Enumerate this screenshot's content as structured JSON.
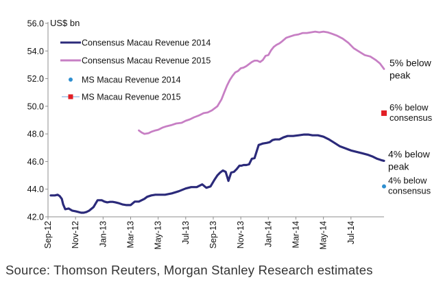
{
  "chart_data": {
    "type": "line",
    "ylabel": "US$ bn",
    "ylim": [
      42.0,
      56.0
    ],
    "yticks": [
      "42.0",
      "44.0",
      "46.0",
      "48.0",
      "50.0",
      "52.0",
      "54.0",
      "56.0"
    ],
    "ytick_values": [
      42,
      44,
      46,
      48,
      50,
      52,
      54,
      56
    ],
    "xlim": [
      0,
      24.5
    ],
    "xticks": [
      "Sep-12",
      "Nov-12",
      "Jan-13",
      "Mar-13",
      "May-13",
      "Jul-13",
      "Sep-13",
      "Nov-13",
      "Jan-14",
      "Mar-14",
      "May-14",
      "Jul-14"
    ],
    "xtick_values": [
      0,
      2,
      4,
      6,
      8,
      10,
      12,
      14,
      16,
      18,
      20,
      22
    ],
    "series": [
      {
        "name": "Consensus Macau Revenue 2014",
        "color": "#2b2a7a",
        "style": "line",
        "x": [
          0.2,
          0.5,
          0.7,
          0.85,
          1.0,
          1.1,
          1.25,
          1.5,
          1.75,
          2.0,
          2.2,
          2.4,
          2.6,
          2.8,
          3.0,
          3.3,
          3.6,
          3.9,
          4.1,
          4.3,
          4.5,
          4.7,
          4.9,
          5.1,
          5.4,
          5.7,
          6.0,
          6.3,
          6.6,
          7.0,
          7.2,
          7.5,
          7.8,
          8.1,
          8.5,
          9.0,
          9.5,
          10.0,
          10.4,
          10.8,
          11.2,
          11.5,
          11.8,
          12.1,
          12.3,
          12.5,
          12.7,
          12.9,
          13.1,
          13.3,
          13.5,
          13.7,
          13.9,
          14.05,
          14.2,
          14.4,
          14.6,
          14.8,
          15.0,
          15.3,
          15.6,
          15.9,
          16.1,
          16.3,
          16.5,
          16.8,
          17.1,
          17.4,
          17.8,
          18.2,
          18.6,
          18.9,
          19.2,
          19.6,
          20.0,
          20.4,
          20.8,
          21.2,
          21.6,
          22.0,
          22.4,
          22.8,
          23.2,
          23.6,
          23.9,
          24.2,
          24.4
        ],
        "y": [
          43.55,
          43.55,
          43.6,
          43.5,
          43.3,
          42.9,
          42.55,
          42.6,
          42.45,
          42.4,
          42.35,
          42.3,
          42.3,
          42.35,
          42.45,
          42.7,
          43.2,
          43.2,
          43.1,
          43.05,
          43.08,
          43.08,
          43.05,
          43.0,
          42.9,
          42.85,
          42.85,
          43.1,
          43.1,
          43.3,
          43.45,
          43.55,
          43.6,
          43.6,
          43.6,
          43.7,
          43.85,
          44.05,
          44.15,
          44.15,
          44.35,
          44.1,
          44.2,
          44.7,
          45.0,
          45.2,
          45.35,
          45.25,
          44.6,
          45.2,
          45.25,
          45.45,
          45.7,
          45.7,
          45.75,
          45.75,
          45.8,
          46.2,
          46.25,
          47.2,
          47.3,
          47.35,
          47.4,
          47.55,
          47.6,
          47.6,
          47.75,
          47.85,
          47.85,
          47.9,
          47.95,
          47.95,
          47.9,
          47.9,
          47.8,
          47.6,
          47.35,
          47.1,
          46.95,
          46.8,
          46.7,
          46.6,
          46.5,
          46.35,
          46.2,
          46.1,
          46.05
        ]
      },
      {
        "name": "Consensus Macau Revenue 2015",
        "color": "#c77fc4",
        "style": "line",
        "x": [
          6.6,
          6.8,
          7.0,
          7.3,
          7.5,
          7.8,
          8.0,
          8.3,
          8.6,
          9.0,
          9.3,
          9.7,
          10.0,
          10.3,
          10.6,
          11.0,
          11.3,
          11.6,
          11.9,
          12.1,
          12.3,
          12.6,
          12.8,
          13.0,
          13.2,
          13.4,
          13.6,
          13.8,
          14.0,
          14.2,
          14.4,
          14.6,
          14.8,
          15.0,
          15.2,
          15.4,
          15.6,
          15.8,
          16.0,
          16.2,
          16.4,
          16.6,
          16.8,
          17.0,
          17.3,
          17.6,
          17.9,
          18.2,
          18.5,
          18.8,
          19.1,
          19.4,
          19.7,
          20.0,
          20.3,
          20.6,
          21.0,
          21.4,
          21.8,
          22.2,
          22.6,
          23.0,
          23.4,
          23.8,
          24.1,
          24.4
        ],
        "y": [
          48.25,
          48.1,
          48.0,
          48.05,
          48.15,
          48.25,
          48.3,
          48.45,
          48.55,
          48.65,
          48.75,
          48.8,
          48.95,
          49.05,
          49.2,
          49.35,
          49.5,
          49.55,
          49.7,
          49.85,
          50.0,
          50.5,
          51.0,
          51.5,
          51.9,
          52.2,
          52.45,
          52.55,
          52.75,
          52.8,
          52.9,
          53.05,
          53.2,
          53.3,
          53.3,
          53.2,
          53.35,
          53.65,
          53.7,
          54.05,
          54.3,
          54.45,
          54.55,
          54.7,
          54.95,
          55.05,
          55.15,
          55.2,
          55.3,
          55.3,
          55.35,
          55.4,
          55.35,
          55.4,
          55.35,
          55.25,
          55.1,
          54.9,
          54.6,
          54.2,
          53.95,
          53.7,
          53.6,
          53.35,
          53.1,
          52.7
        ]
      },
      {
        "name": "MS Macau Revenue 2014",
        "color": "#2f8fd0",
        "style": "marker",
        "marker": "circle",
        "x": [
          24.4
        ],
        "y": [
          44.2
        ]
      },
      {
        "name": "MS Macau Revenue 2015",
        "color": "#e21f26",
        "style": "marker",
        "marker": "square",
        "x": [
          24.4
        ],
        "y": [
          49.5
        ]
      }
    ],
    "annotations": [
      {
        "lines": [
          "5% below",
          "peak"
        ],
        "y": 52.7,
        "size": "large"
      },
      {
        "lines": [
          "6% below",
          "consensus"
        ],
        "y": 49.5,
        "size": "small"
      },
      {
        "lines": [
          "4% below",
          "peak"
        ],
        "y": 46.1,
        "size": "large"
      },
      {
        "lines": [
          "4% below",
          "consensus"
        ],
        "y": 44.2,
        "size": "small"
      }
    ],
    "legend_position": "top-left"
  },
  "source": "Source: Thomson Reuters, Morgan Stanley Research estimates"
}
